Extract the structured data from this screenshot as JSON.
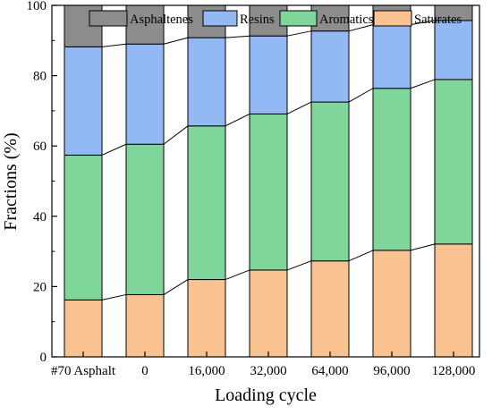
{
  "chart_data": {
    "type": "bar",
    "stacked": true,
    "categories": [
      "#70 Asphalt",
      "0",
      "16,000",
      "32,000",
      "64,000",
      "96,000",
      "128,000"
    ],
    "series": [
      {
        "name": "Saturates",
        "color": "#f8c291",
        "values": [
          16.2,
          17.7,
          22.0,
          24.7,
          27.3,
          30.3,
          32.1
        ]
      },
      {
        "name": "Aromatics",
        "color": "#7fd69a",
        "values": [
          41.2,
          42.8,
          43.7,
          44.4,
          45.2,
          46.1,
          46.8
        ]
      },
      {
        "name": "Resins",
        "color": "#93b9f4",
        "values": [
          30.8,
          28.5,
          25.1,
          22.2,
          20.2,
          18.1,
          16.8
        ]
      },
      {
        "name": "Asphaltenes",
        "color": "#8c8c8c",
        "values": [
          11.8,
          11.0,
          9.2,
          8.7,
          7.3,
          5.5,
          4.3
        ]
      }
    ],
    "legend_order": [
      "Asphaltenes",
      "Resins",
      "Aromatics",
      "Saturates"
    ],
    "legend_position": "top",
    "connector_lines": true,
    "xlabel": "Loading cycle",
    "ylabel": "Fractions (%)",
    "ylim": [
      0,
      100
    ],
    "yticks": [
      0,
      20,
      40,
      60,
      80,
      100
    ],
    "grid": false
  }
}
